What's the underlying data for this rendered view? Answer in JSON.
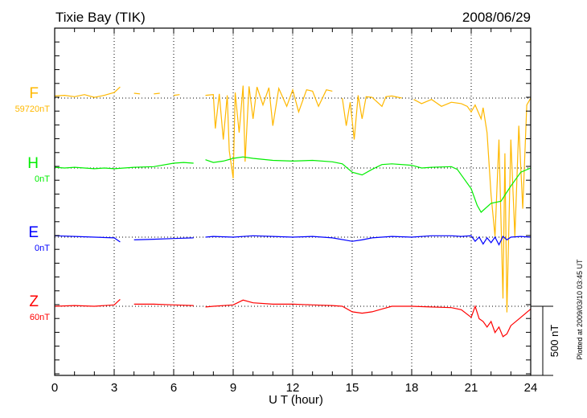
{
  "chart_data": {
    "type": "line",
    "title": "Tixie Bay (TIK)",
    "date": "2008/06/29",
    "xlabel": "U T (hour)",
    "xlim": [
      0,
      24
    ],
    "xticks": [
      0,
      3,
      6,
      9,
      12,
      15,
      18,
      21,
      24
    ],
    "grid": true,
    "scale_bar": {
      "value": 500,
      "label": "500 nT"
    },
    "footnote": "Plotted at 2009/03/10 03:45 UT",
    "series": [
      {
        "name": "F",
        "baseline_label": "59720nT",
        "color": "#ffb800",
        "points": [
          [
            0,
            15
          ],
          [
            0.5,
            20
          ],
          [
            1,
            10
          ],
          [
            1.5,
            25
          ],
          [
            2,
            5
          ],
          [
            2.5,
            20
          ],
          [
            3,
            40
          ],
          [
            3.3,
            80
          ],
          [
            3.5,
            null
          ],
          [
            4,
            35
          ],
          [
            4.3,
            30
          ],
          [
            4.5,
            null
          ],
          [
            5,
            30
          ],
          [
            5.3,
            35
          ],
          [
            5.5,
            null
          ],
          [
            6,
            20
          ],
          [
            6.3,
            25
          ],
          [
            6.5,
            null
          ],
          [
            7.6,
            20
          ],
          [
            8,
            25
          ],
          [
            8.1,
            -220
          ],
          [
            8.3,
            30
          ],
          [
            8.5,
            -300
          ],
          [
            8.7,
            20
          ],
          [
            8.8,
            -380
          ],
          [
            9,
            -580
          ],
          [
            9.1,
            40
          ],
          [
            9.3,
            -250
          ],
          [
            9.5,
            90
          ],
          [
            9.6,
            -460
          ],
          [
            9.8,
            85
          ],
          [
            10,
            -150
          ],
          [
            10.2,
            80
          ],
          [
            10.5,
            -50
          ],
          [
            10.8,
            75
          ],
          [
            11,
            -200
          ],
          [
            11.3,
            70
          ],
          [
            11.7,
            -60
          ],
          [
            12,
            60
          ],
          [
            12.3,
            -100
          ],
          [
            12.7,
            60
          ],
          [
            13,
            50
          ],
          [
            13.3,
            -60
          ],
          [
            13.7,
            60
          ],
          [
            14,
            50
          ],
          [
            14.3,
            null
          ],
          [
            14.5,
            0
          ],
          [
            14.7,
            -200
          ],
          [
            14.9,
            -30
          ],
          [
            15.1,
            -300
          ],
          [
            15.3,
            20
          ],
          [
            15.5,
            -150
          ],
          [
            15.7,
            10
          ],
          [
            16,
            5
          ],
          [
            16.5,
            -60
          ],
          [
            16.7,
            10
          ],
          [
            17,
            15
          ],
          [
            17.5,
            0
          ],
          [
            18,
            null
          ],
          [
            18.1,
            -10
          ],
          [
            18.5,
            -40
          ],
          [
            19,
            -10
          ],
          [
            19.5,
            -60
          ],
          [
            20,
            -30
          ],
          [
            20.5,
            -40
          ],
          [
            20.8,
            -60
          ],
          [
            21,
            -100
          ],
          [
            21.2,
            -50
          ],
          [
            21.5,
            -150
          ],
          [
            21.6,
            -70
          ],
          [
            21.8,
            -250
          ],
          [
            22,
            -700
          ],
          [
            22.2,
            -1000
          ],
          [
            22.4,
            -300
          ],
          [
            22.6,
            -1450
          ],
          [
            22.7,
            -400
          ],
          [
            22.8,
            -1550
          ],
          [
            23,
            -300
          ],
          [
            23.2,
            -1000
          ],
          [
            23.4,
            -200
          ],
          [
            23.6,
            -800
          ],
          [
            23.8,
            -50
          ],
          [
            24,
            0
          ]
        ]
      },
      {
        "name": "H",
        "baseline_label": "0nT",
        "color": "#00ee00",
        "points": [
          [
            0,
            5
          ],
          [
            0.5,
            0
          ],
          [
            1,
            5
          ],
          [
            1.5,
            0
          ],
          [
            2,
            -5
          ],
          [
            2.5,
            0
          ],
          [
            3,
            -5
          ],
          [
            3.5,
            0
          ],
          [
            4,
            5
          ],
          [
            5,
            10
          ],
          [
            6,
            35
          ],
          [
            6.5,
            40
          ],
          [
            7,
            35
          ],
          [
            7.5,
            null
          ],
          [
            7.6,
            60
          ],
          [
            8,
            40
          ],
          [
            8.5,
            50
          ],
          [
            9,
            70
          ],
          [
            9.5,
            80
          ],
          [
            10,
            70
          ],
          [
            11,
            55
          ],
          [
            12,
            50
          ],
          [
            13,
            55
          ],
          [
            14,
            45
          ],
          [
            14.5,
            30
          ],
          [
            15,
            -30
          ],
          [
            15.5,
            -50
          ],
          [
            16,
            -10
          ],
          [
            16.5,
            25
          ],
          [
            17,
            30
          ],
          [
            18,
            20
          ],
          [
            18.5,
            0
          ],
          [
            19,
            5
          ],
          [
            20,
            10
          ],
          [
            20.3,
            -10
          ],
          [
            21,
            -150
          ],
          [
            21.3,
            -270
          ],
          [
            21.5,
            -320
          ],
          [
            22,
            -255
          ],
          [
            22.5,
            -240
          ],
          [
            23,
            -130
          ],
          [
            23.5,
            -30
          ],
          [
            24,
            0
          ]
        ]
      },
      {
        "name": "E",
        "baseline_label": "0nT",
        "color": "#0000ff",
        "points": [
          [
            0,
            10
          ],
          [
            1,
            5
          ],
          [
            2,
            0
          ],
          [
            3,
            -5
          ],
          [
            3.3,
            -35
          ],
          [
            3.5,
            null
          ],
          [
            4,
            -20
          ],
          [
            5,
            -15
          ],
          [
            6,
            -10
          ],
          [
            7,
            -5
          ],
          [
            7.5,
            null
          ],
          [
            7.6,
            0
          ],
          [
            8,
            5
          ],
          [
            9,
            0
          ],
          [
            10,
            10
          ],
          [
            11,
            5
          ],
          [
            12,
            0
          ],
          [
            13,
            5
          ],
          [
            14,
            -5
          ],
          [
            15,
            -30
          ],
          [
            15.5,
            -20
          ],
          [
            16,
            -5
          ],
          [
            17,
            5
          ],
          [
            18,
            0
          ],
          [
            19,
            10
          ],
          [
            20,
            10
          ],
          [
            20.5,
            5
          ],
          [
            21,
            10
          ],
          [
            21.2,
            -30
          ],
          [
            21.4,
            0
          ],
          [
            21.6,
            -50
          ],
          [
            21.8,
            -5
          ],
          [
            22,
            -40
          ],
          [
            22.2,
            0
          ],
          [
            22.4,
            -55
          ],
          [
            22.6,
            5
          ],
          [
            22.8,
            -20
          ],
          [
            23,
            0
          ],
          [
            23.5,
            5
          ],
          [
            24,
            0
          ]
        ]
      },
      {
        "name": "Z",
        "baseline_label": "60nT",
        "color": "#ff0000",
        "points": [
          [
            0,
            0
          ],
          [
            1,
            5
          ],
          [
            2,
            0
          ],
          [
            3,
            10
          ],
          [
            3.3,
            50
          ],
          [
            3.5,
            null
          ],
          [
            4,
            15
          ],
          [
            5,
            15
          ],
          [
            6,
            10
          ],
          [
            7,
            5
          ],
          [
            7.5,
            null
          ],
          [
            7.6,
            -5
          ],
          [
            8,
            0
          ],
          [
            9,
            10
          ],
          [
            9.5,
            45
          ],
          [
            10,
            25
          ],
          [
            11,
            15
          ],
          [
            12,
            15
          ],
          [
            13,
            10
          ],
          [
            14,
            5
          ],
          [
            14.5,
            0
          ],
          [
            15,
            -40
          ],
          [
            15.5,
            -50
          ],
          [
            16,
            -40
          ],
          [
            16.5,
            -20
          ],
          [
            17,
            0
          ],
          [
            18,
            0
          ],
          [
            19,
            -5
          ],
          [
            20,
            -10
          ],
          [
            20.5,
            -25
          ],
          [
            21,
            -80
          ],
          [
            21.2,
            0
          ],
          [
            21.4,
            -90
          ],
          [
            21.6,
            -110
          ],
          [
            21.8,
            -150
          ],
          [
            22,
            -110
          ],
          [
            22.2,
            -190
          ],
          [
            22.4,
            -150
          ],
          [
            22.6,
            -220
          ],
          [
            22.8,
            -200
          ],
          [
            23,
            -140
          ],
          [
            23.5,
            -80
          ],
          [
            24,
            -20
          ]
        ]
      }
    ]
  }
}
